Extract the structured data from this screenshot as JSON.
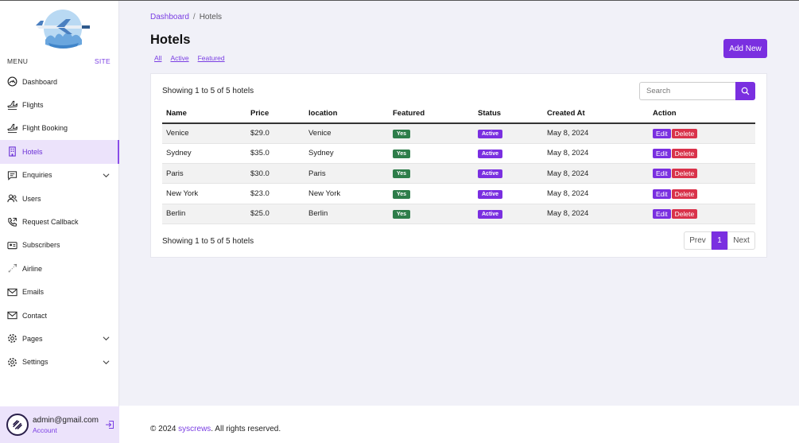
{
  "sidebar": {
    "menu_label": "MENU",
    "site_label": "SITE",
    "items": [
      {
        "label": "Dashboard",
        "icon": "dashboard-icon"
      },
      {
        "label": "Flights",
        "icon": "plane-icon"
      },
      {
        "label": "Flight Booking",
        "icon": "plane-icon"
      },
      {
        "label": "Hotels",
        "icon": "building-icon",
        "active": true
      },
      {
        "label": "Enquiries",
        "icon": "message-icon",
        "expandable": true
      },
      {
        "label": "Users",
        "icon": "users-icon"
      },
      {
        "label": "Request Callback",
        "icon": "phone-icon"
      },
      {
        "label": "Subscribers",
        "icon": "subscribers-icon"
      },
      {
        "label": "Airline",
        "icon": "airline-icon"
      },
      {
        "label": "Emails",
        "icon": "mail-icon"
      },
      {
        "label": "Contact",
        "icon": "mail-icon"
      },
      {
        "label": "Pages",
        "icon": "gear-icon",
        "expandable": true
      },
      {
        "label": "Settings",
        "icon": "gear-icon",
        "expandable": true
      }
    ],
    "account": {
      "email": "admin@gmail.com",
      "role": "Account"
    }
  },
  "breadcrumb": {
    "parent": "Dashboard",
    "separator": "/",
    "current": "Hotels"
  },
  "page_title": "Hotels",
  "filters": [
    "All",
    "Active",
    "Featured"
  ],
  "add_button": "Add New",
  "table": {
    "showing_text": "Showing 1 to 5 of 5 hotels",
    "search_placeholder": "Search",
    "columns": [
      "Name",
      "Price",
      "location",
      "Featured",
      "Status",
      "Created At",
      "Action"
    ],
    "rows": [
      {
        "name": "Venice",
        "price": "$29.0",
        "location": "Venice",
        "featured": "Yes",
        "status": "Active",
        "created": "May 8, 2024"
      },
      {
        "name": "Sydney",
        "price": "$35.0",
        "location": "Sydney",
        "featured": "Yes",
        "status": "Active",
        "created": "May 8, 2024"
      },
      {
        "name": "Paris",
        "price": "$30.0",
        "location": "Paris",
        "featured": "Yes",
        "status": "Active",
        "created": "May 8, 2024"
      },
      {
        "name": "New York",
        "price": "$23.0",
        "location": "New York",
        "featured": "Yes",
        "status": "Active",
        "created": "May 8, 2024"
      },
      {
        "name": "Berlin",
        "price": "$25.0",
        "location": "Berlin",
        "featured": "Yes",
        "status": "Active",
        "created": "May 8, 2024"
      }
    ],
    "edit_label": "Edit",
    "delete_label": "Delete"
  },
  "pagination": {
    "prev": "Prev",
    "current": "1",
    "next": "Next"
  },
  "footer": {
    "prefix": "© 2024 ",
    "brand": "syscrews",
    "suffix": ". All rights reserved."
  },
  "colors": {
    "accent": "#7a2fe0",
    "featured_badge": "#2e7d4a",
    "delete": "#d9324a",
    "active_nav_bg": "#ece3fb"
  }
}
